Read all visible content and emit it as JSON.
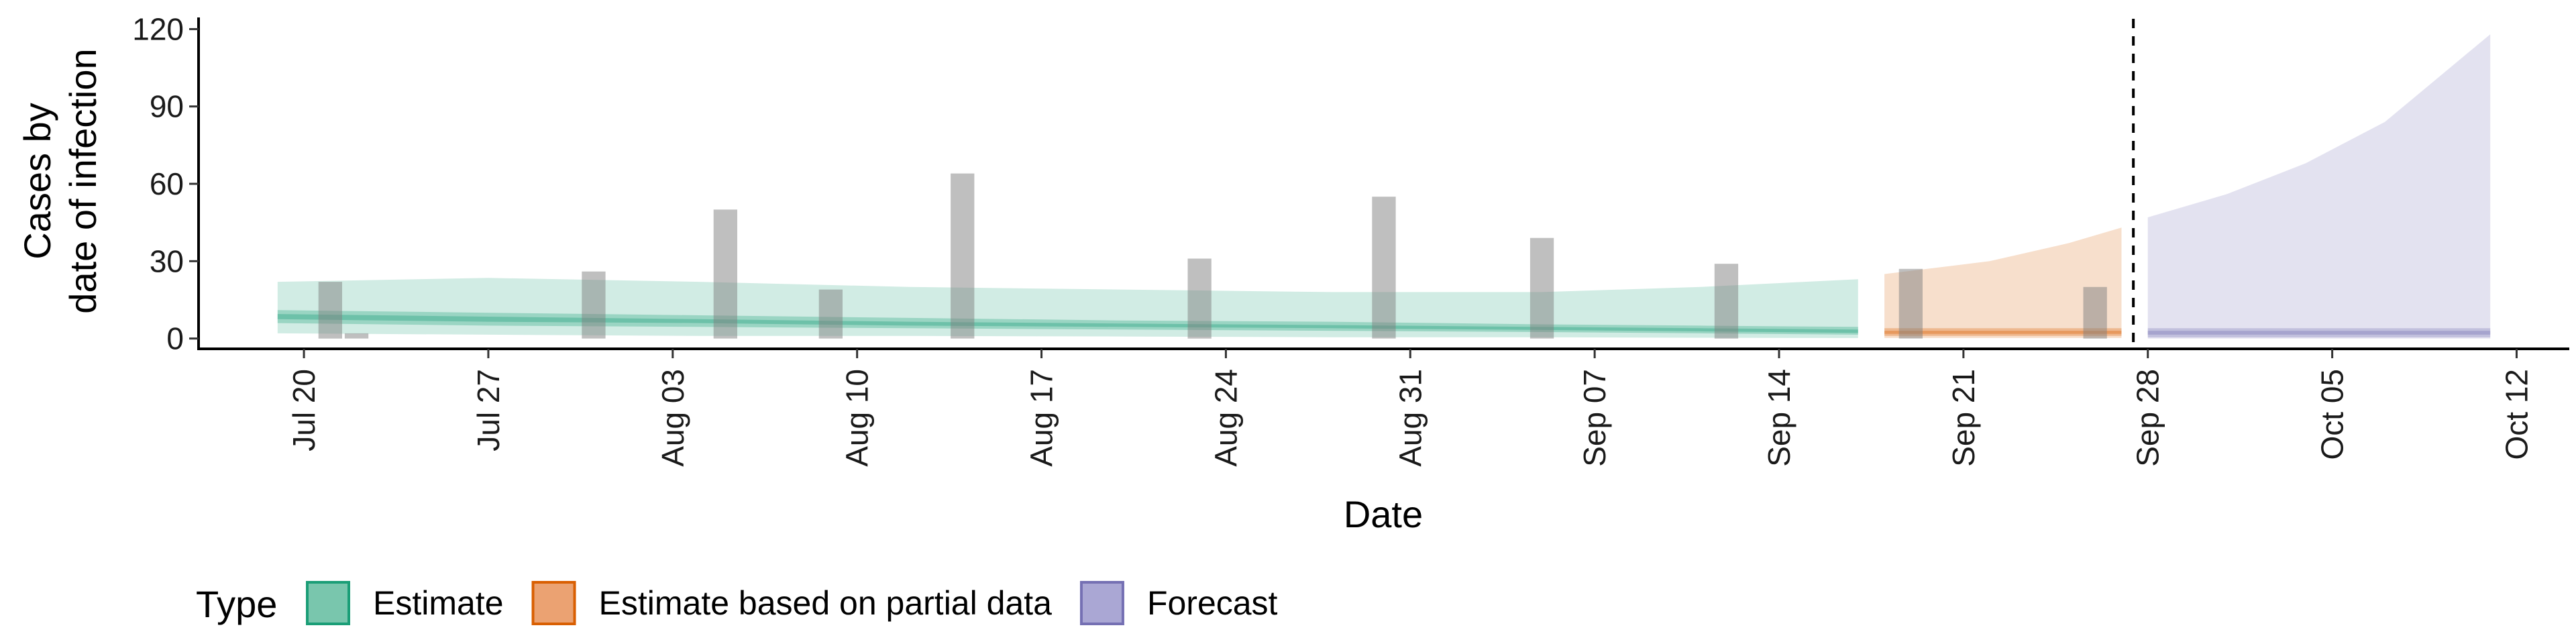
{
  "chart_data": {
    "type": "area",
    "xlabel": "Date",
    "ylabel_lines": [
      "Cases by",
      "date of infection"
    ],
    "x_start": "2020-07-16",
    "x_end": "2020-10-14",
    "ylim": [
      -4,
      124
    ],
    "y_ticks": [
      0,
      30,
      60,
      90,
      120
    ],
    "x_ticks": [
      {
        "date": "2020-07-20",
        "label": "Jul 20"
      },
      {
        "date": "2020-07-27",
        "label": "Jul 27"
      },
      {
        "date": "2020-08-03",
        "label": "Aug 03"
      },
      {
        "date": "2020-08-10",
        "label": "Aug 10"
      },
      {
        "date": "2020-08-17",
        "label": "Aug 17"
      },
      {
        "date": "2020-08-24",
        "label": "Aug 24"
      },
      {
        "date": "2020-08-31",
        "label": "Aug 31"
      },
      {
        "date": "2020-09-07",
        "label": "Sep 07"
      },
      {
        "date": "2020-09-14",
        "label": "Sep 14"
      },
      {
        "date": "2020-09-21",
        "label": "Sep 21"
      },
      {
        "date": "2020-09-28",
        "label": "Sep 28"
      },
      {
        "date": "2020-10-05",
        "label": "Oct 05"
      },
      {
        "date": "2020-10-12",
        "label": "Oct 12"
      }
    ],
    "observed_cases": [
      {
        "date": "2020-07-21",
        "value": 22
      },
      {
        "date": "2020-07-22",
        "value": 2
      },
      {
        "date": "2020-07-31",
        "value": 26
      },
      {
        "date": "2020-08-05",
        "value": 50
      },
      {
        "date": "2020-08-09",
        "value": 19
      },
      {
        "date": "2020-08-14",
        "value": 64
      },
      {
        "date": "2020-08-23",
        "value": 31
      },
      {
        "date": "2020-08-30",
        "value": 55
      },
      {
        "date": "2020-09-05",
        "value": 39
      },
      {
        "date": "2020-09-12",
        "value": 29
      },
      {
        "date": "2020-09-19",
        "value": 27
      },
      {
        "date": "2020-09-26",
        "value": 20
      }
    ],
    "forecast_date": "2020-09-27",
    "series": [
      {
        "name": "Estimate",
        "color": "#1b9e77",
        "points": [
          {
            "date": "2020-07-19",
            "lo90": 2,
            "hi90": 22,
            "lo50": 6,
            "hi50": 11,
            "lo20": 7.5,
            "hi20": 9.5
          },
          {
            "date": "2020-07-27",
            "lo90": 1.5,
            "hi90": 23.5,
            "lo50": 5,
            "hi50": 10,
            "lo20": 6.5,
            "hi20": 8.5
          },
          {
            "date": "2020-08-04",
            "lo90": 1,
            "hi90": 22,
            "lo50": 4.5,
            "hi50": 9,
            "lo20": 6,
            "hi20": 7.5
          },
          {
            "date": "2020-08-12",
            "lo90": 1,
            "hi90": 20,
            "lo50": 4,
            "hi50": 8,
            "lo20": 5,
            "hi20": 6.5
          },
          {
            "date": "2020-08-20",
            "lo90": 0.8,
            "hi90": 19,
            "lo50": 3.5,
            "hi50": 7,
            "lo20": 4.5,
            "hi20": 5.8
          },
          {
            "date": "2020-08-28",
            "lo90": 0.5,
            "hi90": 18,
            "lo50": 3,
            "hi50": 6.5,
            "lo20": 4,
            "hi20": 5.2
          },
          {
            "date": "2020-09-05",
            "lo90": 0.5,
            "hi90": 18,
            "lo50": 2.5,
            "hi50": 5.5,
            "lo20": 3.3,
            "hi20": 4.5
          },
          {
            "date": "2020-09-11",
            "lo90": 0.3,
            "hi90": 20,
            "lo50": 2,
            "hi50": 5,
            "lo20": 2.8,
            "hi20": 4
          },
          {
            "date": "2020-09-17",
            "lo90": 0.2,
            "hi90": 23,
            "lo50": 1.5,
            "hi50": 4.5,
            "lo20": 2.2,
            "hi20": 3.5
          }
        ]
      },
      {
        "name": "Estimate based on partial data",
        "color": "#d95f02",
        "points": [
          {
            "date": "2020-09-18",
            "lo90": 0.2,
            "hi90": 25,
            "lo50": 1,
            "hi50": 4,
            "lo20": 1.8,
            "hi20": 3
          },
          {
            "date": "2020-09-22",
            "lo90": 0.2,
            "hi90": 30,
            "lo50": 1,
            "hi50": 4,
            "lo20": 1.8,
            "hi20": 3
          },
          {
            "date": "2020-09-25",
            "lo90": 0.2,
            "hi90": 37,
            "lo50": 1,
            "hi50": 4,
            "lo20": 1.8,
            "hi20": 3
          },
          {
            "date": "2020-09-27",
            "lo90": 0.2,
            "hi90": 43,
            "lo50": 1,
            "hi50": 4,
            "lo20": 1.8,
            "hi20": 3
          }
        ]
      },
      {
        "name": "Forecast",
        "color": "#7570b3",
        "points": [
          {
            "date": "2020-09-28",
            "lo90": 0,
            "hi90": 47,
            "lo50": 0.5,
            "hi50": 4,
            "lo20": 1.5,
            "hi20": 3
          },
          {
            "date": "2020-10-01",
            "lo90": 0,
            "hi90": 56,
            "lo50": 0.5,
            "hi50": 4,
            "lo20": 1.5,
            "hi20": 3
          },
          {
            "date": "2020-10-04",
            "lo90": 0,
            "hi90": 68,
            "lo50": 0.5,
            "hi50": 4,
            "lo20": 1.5,
            "hi20": 3
          },
          {
            "date": "2020-10-07",
            "lo90": 0,
            "hi90": 84,
            "lo50": 0.5,
            "hi50": 4,
            "lo20": 1.5,
            "hi20": 3
          },
          {
            "date": "2020-10-11",
            "lo90": 0,
            "hi90": 118,
            "lo50": 0.5,
            "hi50": 4,
            "lo20": 1.5,
            "hi20": 3
          }
        ]
      }
    ]
  },
  "legend": {
    "title": "Type",
    "items": [
      {
        "label": "Estimate",
        "color": "#1b9e77",
        "fill": "#79c6ad"
      },
      {
        "label": "Estimate based on partial data",
        "color": "#d95f02",
        "fill": "#eba272"
      },
      {
        "label": "Forecast",
        "color": "#7570b3",
        "fill": "#aaa7d4"
      }
    ]
  }
}
